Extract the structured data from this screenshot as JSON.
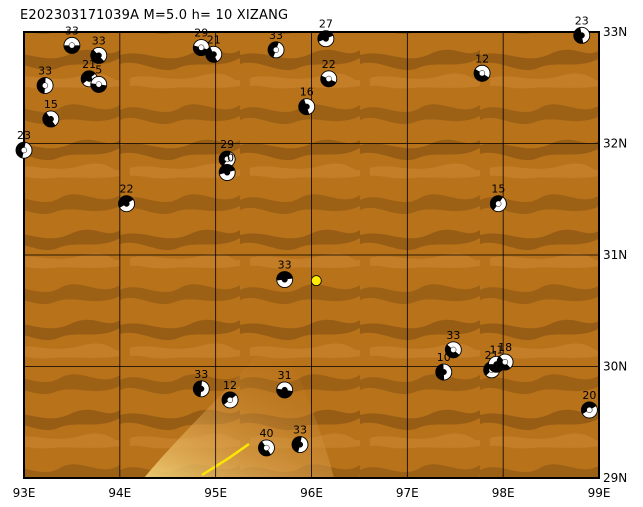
{
  "header": {
    "title": "E202303171039A  M=5.0  h= 10  XIZANG"
  },
  "map": {
    "lon_range": [
      93,
      99
    ],
    "lat_range": [
      29,
      33
    ],
    "lon_ticks": [
      {
        "value": 93,
        "label": "93E"
      },
      {
        "value": 94,
        "label": "94E"
      },
      {
        "value": 95,
        "label": "95E"
      },
      {
        "value": 96,
        "label": "96E"
      },
      {
        "value": 97,
        "label": "97E"
      },
      {
        "value": 98,
        "label": "98E"
      },
      {
        "value": 99,
        "label": "99E"
      }
    ],
    "lat_ticks": [
      {
        "value": 29,
        "label": "29N"
      },
      {
        "value": 30,
        "label": "30N"
      },
      {
        "value": 31,
        "label": "31N"
      },
      {
        "value": 32,
        "label": "32N"
      },
      {
        "value": 33,
        "label": "33N"
      }
    ],
    "colors": {
      "terrain": "#b8721a",
      "terrain_dark": "#8a5512",
      "terrain_light": "#d89a4a",
      "frame": "#000000",
      "epicenter": "#ffee00"
    },
    "epicenter": {
      "lon": 96.05,
      "lat": 30.77
    },
    "events": [
      {
        "lon": 93.5,
        "lat": 32.88,
        "depth": "33"
      },
      {
        "lon": 93.78,
        "lat": 32.79,
        "depth": "33"
      },
      {
        "lon": 93.22,
        "lat": 32.52,
        "depth": "33"
      },
      {
        "lon": 93.68,
        "lat": 32.58,
        "depth": "21"
      },
      {
        "lon": 93.78,
        "lat": 32.53,
        "depth": "5"
      },
      {
        "lon": 93.28,
        "lat": 32.22,
        "depth": "15"
      },
      {
        "lon": 93.0,
        "lat": 31.94,
        "depth": "23"
      },
      {
        "lon": 94.07,
        "lat": 31.46,
        "depth": "22"
      },
      {
        "lon": 94.85,
        "lat": 32.86,
        "depth": "29"
      },
      {
        "lon": 94.98,
        "lat": 32.8,
        "depth": "21"
      },
      {
        "lon": 95.63,
        "lat": 32.84,
        "depth": "33"
      },
      {
        "lon": 96.15,
        "lat": 32.94,
        "depth": "27"
      },
      {
        "lon": 96.18,
        "lat": 32.58,
        "depth": "22"
      },
      {
        "lon": 95.95,
        "lat": 32.33,
        "depth": "16"
      },
      {
        "lon": 95.12,
        "lat": 31.86,
        "depth": "29"
      },
      {
        "lon": 95.12,
        "lat": 31.74,
        "depth": "10"
      },
      {
        "lon": 97.78,
        "lat": 32.63,
        "depth": "12"
      },
      {
        "lon": 98.82,
        "lat": 32.97,
        "depth": "23"
      },
      {
        "lon": 97.95,
        "lat": 31.46,
        "depth": "15"
      },
      {
        "lon": 95.72,
        "lat": 30.78,
        "depth": "33"
      },
      {
        "lon": 97.48,
        "lat": 30.15,
        "depth": "33"
      },
      {
        "lon": 97.38,
        "lat": 29.95,
        "depth": "10"
      },
      {
        "lon": 97.88,
        "lat": 29.97,
        "depth": "21"
      },
      {
        "lon": 97.93,
        "lat": 30.02,
        "depth": "11"
      },
      {
        "lon": 98.02,
        "lat": 30.04,
        "depth": "18"
      },
      {
        "lon": 94.85,
        "lat": 29.8,
        "depth": "33"
      },
      {
        "lon": 95.15,
        "lat": 29.7,
        "depth": "12"
      },
      {
        "lon": 95.72,
        "lat": 29.79,
        "depth": "31"
      },
      {
        "lon": 95.53,
        "lat": 29.27,
        "depth": "40"
      },
      {
        "lon": 95.88,
        "lat": 29.3,
        "depth": "33"
      },
      {
        "lon": 98.9,
        "lat": 29.61,
        "depth": "20"
      }
    ]
  }
}
